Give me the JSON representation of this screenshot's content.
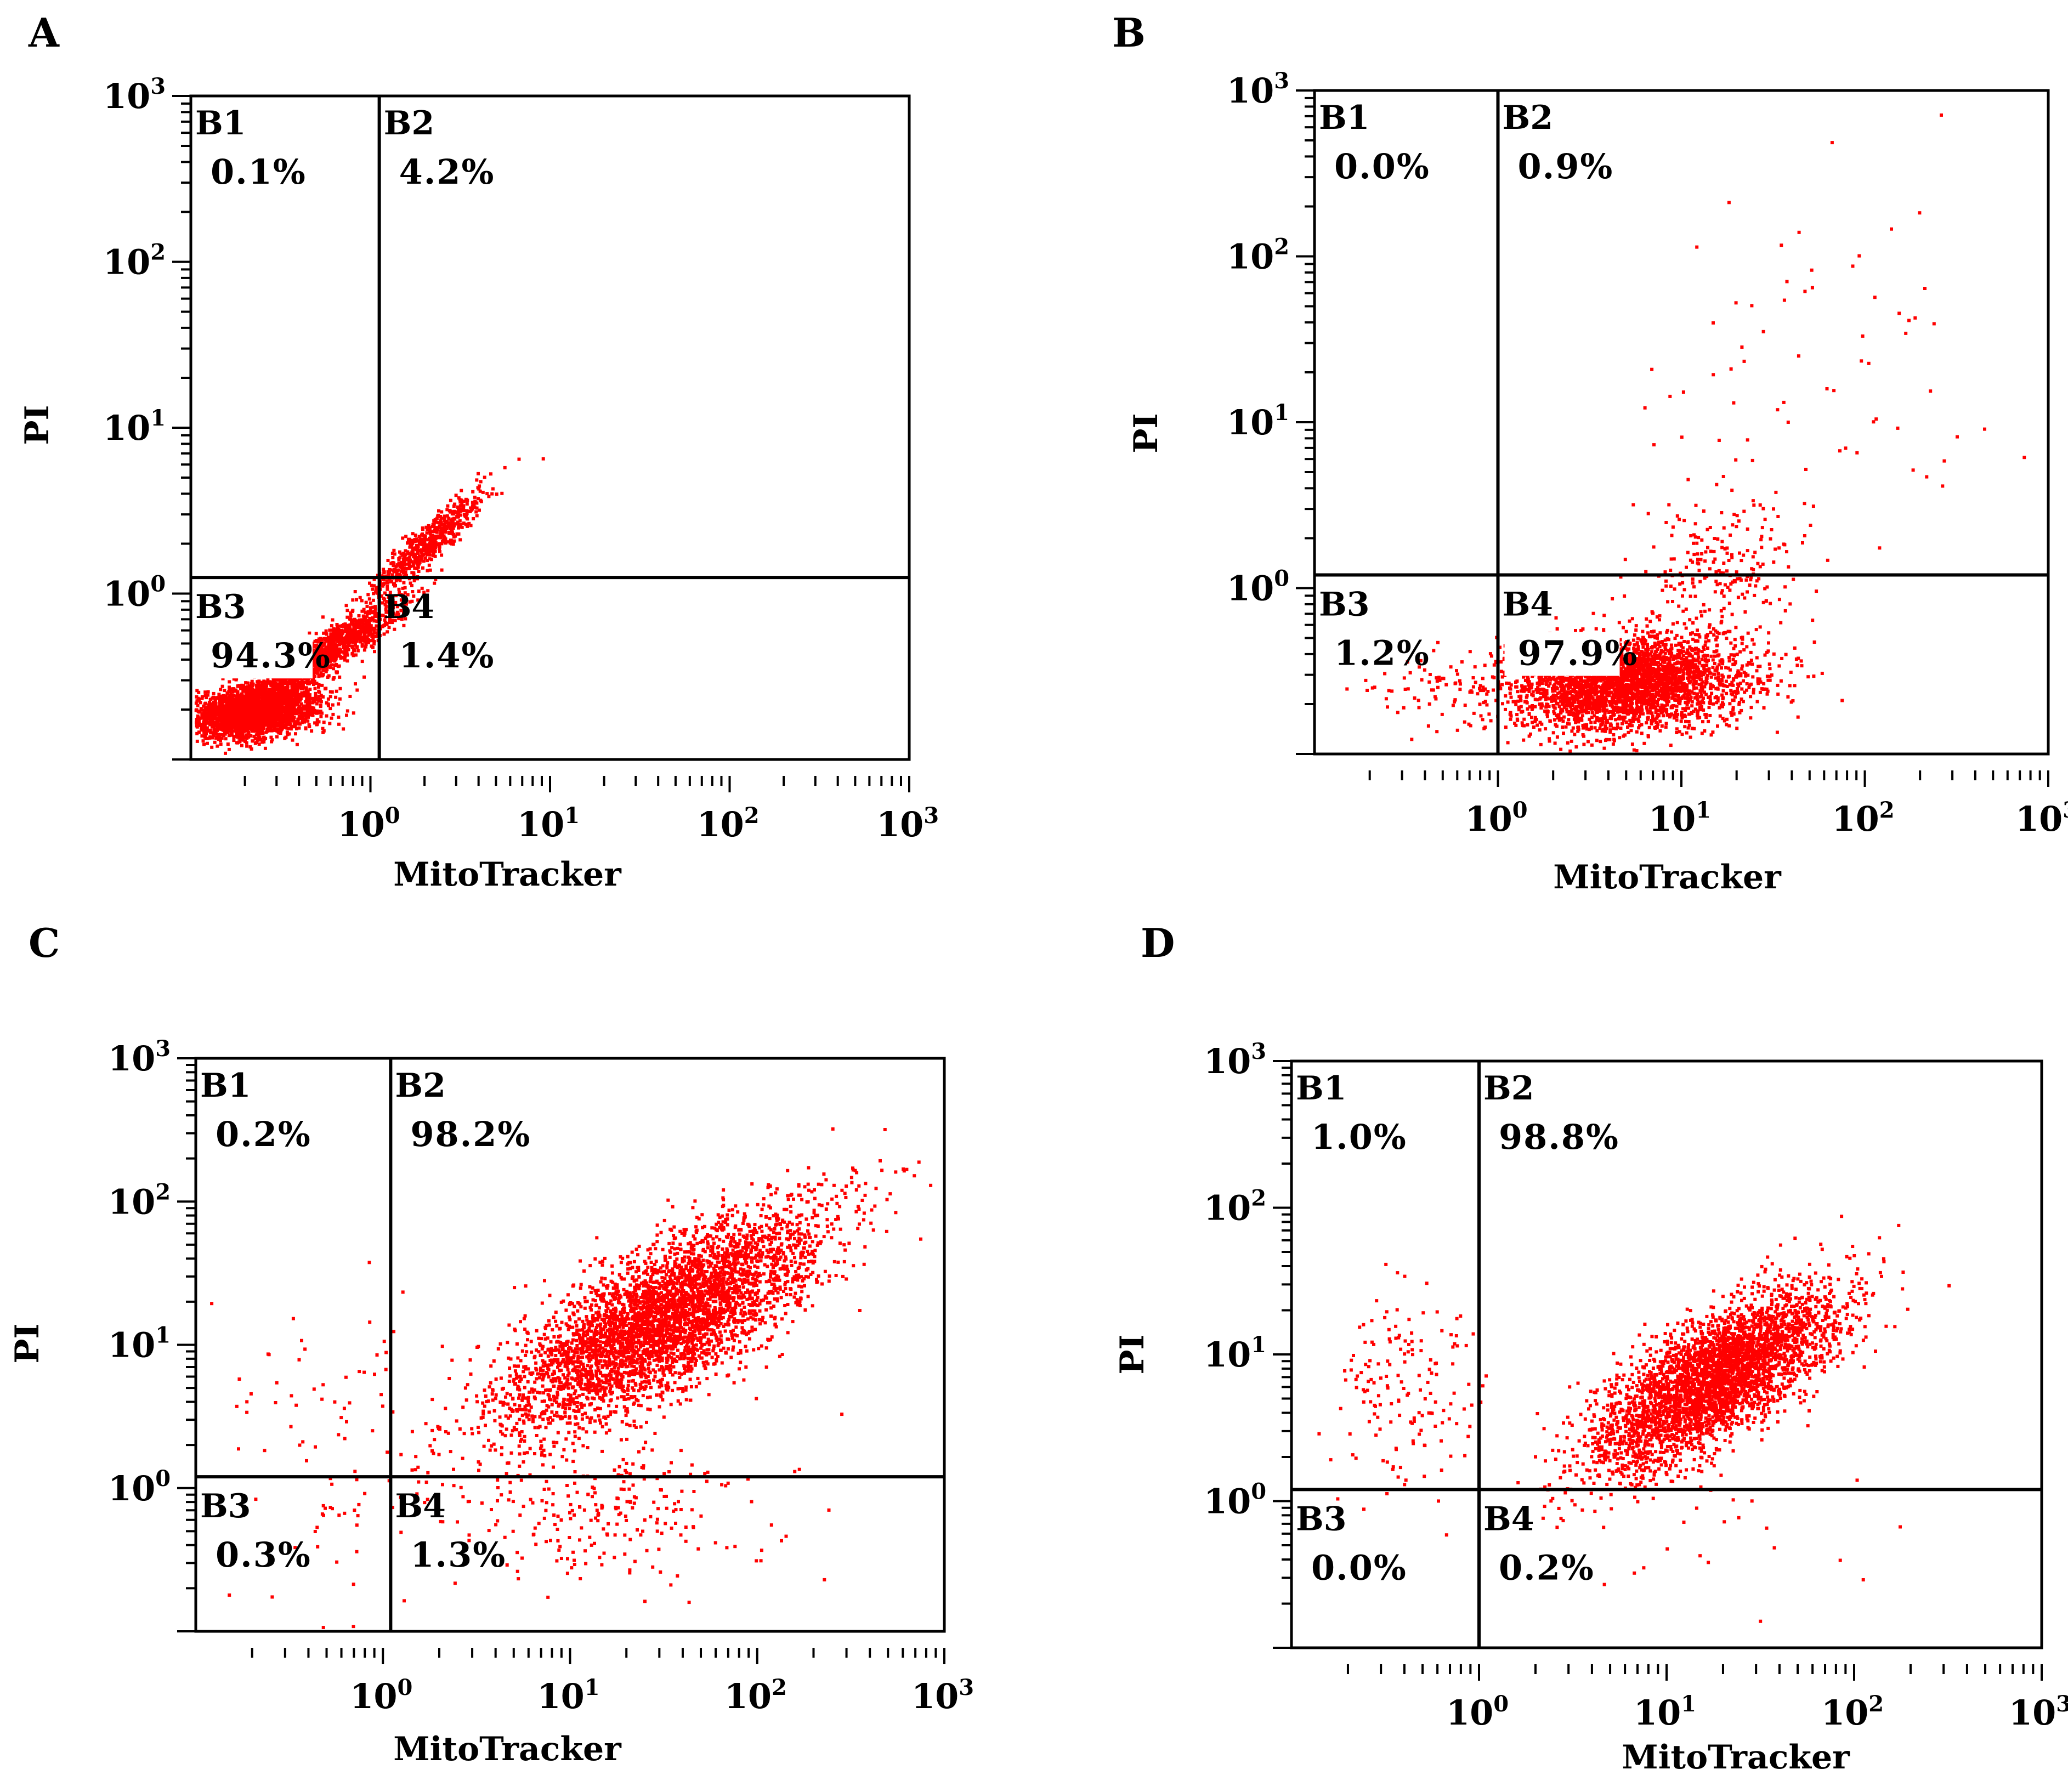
{
  "colors": {
    "dots": "#ff0000",
    "axes": "#000000",
    "background": "#ffffff"
  },
  "chart_data": [
    {
      "panel": "A",
      "type": "scatter",
      "xlabel": "MitoTracker",
      "ylabel": "PI",
      "x_scale": "log",
      "y_scale": "log",
      "xlim": [
        0.1,
        1000
      ],
      "ylim": [
        0.1,
        1000
      ],
      "x_ticks": [
        {
          "value": 1,
          "base": "10",
          "exp": "0"
        },
        {
          "value": 10,
          "base": "10",
          "exp": "1"
        },
        {
          "value": 100,
          "base": "10",
          "exp": "2"
        },
        {
          "value": 1000,
          "base": "10",
          "exp": "3"
        }
      ],
      "y_ticks": [
        {
          "value": 1,
          "base": "10",
          "exp": "0"
        },
        {
          "value": 10,
          "base": "10",
          "exp": "1"
        },
        {
          "value": 100,
          "base": "10",
          "exp": "2"
        },
        {
          "value": 1000,
          "base": "10",
          "exp": "3"
        }
      ],
      "gate": {
        "x": 1.12,
        "y": 1.25
      },
      "quadrants": [
        {
          "label": "B1",
          "percent": "0.1%"
        },
        {
          "label": "B2",
          "percent": "4.2%"
        },
        {
          "label": "B3",
          "percent": "94.3%"
        },
        {
          "label": "B4",
          "percent": "1.4%"
        }
      ],
      "highlight_quadrant": "B3",
      "populations": [
        {
          "center": [
            0.22,
            0.2
          ],
          "spread": [
            0.18,
            0.08
          ],
          "corr": 0.3,
          "count": 2600
        },
        {
          "center": [
            0.55,
            0.45
          ],
          "spread": [
            0.22,
            0.16
          ],
          "corr": 0.92,
          "count": 1300
        },
        {
          "center": [
            2.0,
            2.0
          ],
          "spread": [
            0.17,
            0.17
          ],
          "corr": 0.93,
          "count": 600
        }
      ]
    },
    {
      "panel": "B",
      "type": "scatter",
      "xlabel": "MitoTracker",
      "ylabel": "PI",
      "x_scale": "log",
      "y_scale": "log",
      "xlim": [
        0.1,
        1000
      ],
      "ylim": [
        0.1,
        1000
      ],
      "x_ticks": [
        {
          "value": 1,
          "base": "10",
          "exp": "0"
        },
        {
          "value": 10,
          "base": "10",
          "exp": "1"
        },
        {
          "value": 100,
          "base": "10",
          "exp": "2"
        },
        {
          "value": 1000,
          "base": "10",
          "exp": "3"
        }
      ],
      "y_ticks": [
        {
          "value": 1,
          "base": "10",
          "exp": "0"
        },
        {
          "value": 10,
          "base": "10",
          "exp": "1"
        },
        {
          "value": 100,
          "base": "10",
          "exp": "2"
        },
        {
          "value": 1000,
          "base": "10",
          "exp": "3"
        }
      ],
      "gate": {
        "x": 1.0,
        "y": 1.2
      },
      "quadrants": [
        {
          "label": "B1",
          "percent": "0.0%"
        },
        {
          "label": "B2",
          "percent": "0.9%"
        },
        {
          "label": "B3",
          "percent": "1.2%"
        },
        {
          "label": "B4",
          "percent": "97.9%"
        }
      ],
      "highlight_quadrant": "B4",
      "populations": [
        {
          "center": [
            5.0,
            0.27
          ],
          "spread": [
            0.32,
            0.14
          ],
          "corr": 0.15,
          "count": 3200
        },
        {
          "center": [
            15.0,
            1.2
          ],
          "spread": [
            0.25,
            0.25
          ],
          "corr": 0.3,
          "count": 250
        },
        {
          "center": [
            60.0,
            25.0
          ],
          "spread": [
            0.55,
            0.45
          ],
          "corr": 0.2,
          "count": 70
        },
        {
          "center": [
            0.5,
            0.25
          ],
          "spread": [
            0.2,
            0.1
          ],
          "corr": 0.0,
          "count": 70
        }
      ]
    },
    {
      "panel": "C",
      "type": "scatter",
      "xlabel": "MitoTracker",
      "ylabel": "PI",
      "x_scale": "log",
      "y_scale": "log",
      "xlim": [
        0.1,
        1000
      ],
      "ylim": [
        0.1,
        1000
      ],
      "x_ticks": [
        {
          "value": 1,
          "base": "10",
          "exp": "0"
        },
        {
          "value": 10,
          "base": "10",
          "exp": "1"
        },
        {
          "value": 100,
          "base": "10",
          "exp": "2"
        },
        {
          "value": 1000,
          "base": "10",
          "exp": "3"
        }
      ],
      "y_ticks": [
        {
          "value": 1,
          "base": "10",
          "exp": "0"
        },
        {
          "value": 10,
          "base": "10",
          "exp": "1"
        },
        {
          "value": 100,
          "base": "10",
          "exp": "2"
        },
        {
          "value": 1000,
          "base": "10",
          "exp": "3"
        }
      ],
      "gate": {
        "x": 1.1,
        "y": 1.2
      },
      "quadrants": [
        {
          "label": "B1",
          "percent": "0.2%"
        },
        {
          "label": "B2",
          "percent": "98.2%"
        },
        {
          "label": "B3",
          "percent": "0.3%"
        },
        {
          "label": "B4",
          "percent": "1.3%"
        }
      ],
      "highlight_quadrant": "",
      "populations": [
        {
          "center": [
            30.0,
            15.0
          ],
          "spread": [
            0.42,
            0.38
          ],
          "corr": 0.75,
          "count": 4200
        },
        {
          "center": [
            15.0,
            0.7
          ],
          "spread": [
            0.4,
            0.25
          ],
          "corr": 0.0,
          "count": 250
        },
        {
          "center": [
            0.5,
            2.0
          ],
          "spread": [
            0.3,
            0.55
          ],
          "corr": 0.0,
          "count": 90
        }
      ]
    },
    {
      "panel": "D",
      "type": "scatter",
      "xlabel": "MitoTracker",
      "ylabel": "PI",
      "x_scale": "log",
      "y_scale": "log",
      "xlim": [
        0.1,
        1000
      ],
      "ylim": [
        0.1,
        1000
      ],
      "x_ticks": [
        {
          "value": 1,
          "base": "10",
          "exp": "0"
        },
        {
          "value": 10,
          "base": "10",
          "exp": "1"
        },
        {
          "value": 100,
          "base": "10",
          "exp": "2"
        },
        {
          "value": 1000,
          "base": "10",
          "exp": "3"
        }
      ],
      "y_ticks": [
        {
          "value": 1,
          "base": "10",
          "exp": "0"
        },
        {
          "value": 10,
          "base": "10",
          "exp": "1"
        },
        {
          "value": 100,
          "base": "10",
          "exp": "2"
        },
        {
          "value": 1000,
          "base": "10",
          "exp": "3"
        }
      ],
      "gate": {
        "x": 1.0,
        "y": 1.2
      },
      "quadrants": [
        {
          "label": "B1",
          "percent": "1.0%"
        },
        {
          "label": "B2",
          "percent": "98.8%"
        },
        {
          "label": "B3",
          "percent": "0.0%"
        },
        {
          "label": "B4",
          "percent": "0.2%"
        }
      ],
      "highlight_quadrant": "",
      "populations": [
        {
          "center": [
            18.0,
            7.0
          ],
          "spread": [
            0.32,
            0.3
          ],
          "corr": 0.72,
          "count": 3600
        },
        {
          "center": [
            0.4,
            6.0
          ],
          "spread": [
            0.2,
            0.35
          ],
          "corr": 0.0,
          "count": 160
        },
        {
          "center": [
            30.0,
            0.5
          ],
          "spread": [
            0.4,
            0.2
          ],
          "corr": 0.0,
          "count": 20
        }
      ]
    }
  ]
}
